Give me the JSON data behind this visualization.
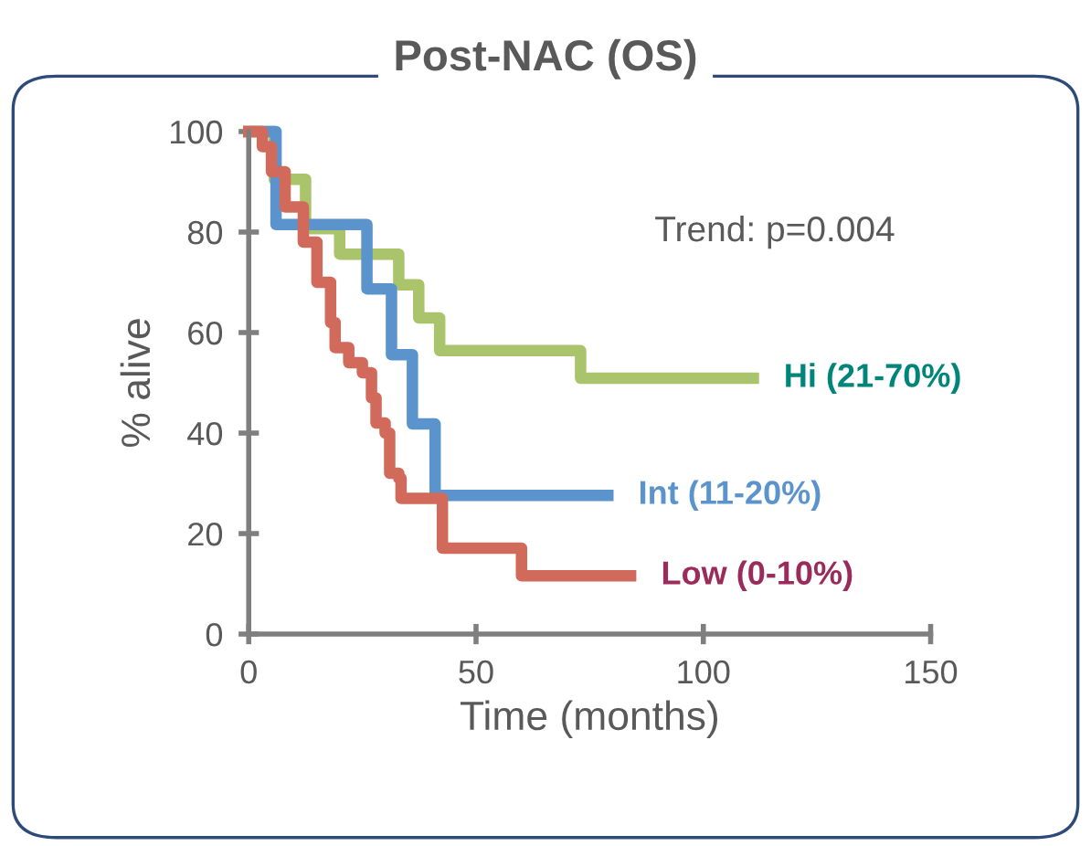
{
  "chart_data": {
    "type": "step",
    "title": "Post-NAC (OS)",
    "xlabel": "Time (months)",
    "ylabel": "% alive",
    "xlim": [
      0,
      150
    ],
    "xticks": [
      0,
      50,
      100,
      150
    ],
    "ylim": [
      0,
      100
    ],
    "yticks": [
      0,
      20,
      40,
      60,
      80,
      100
    ],
    "grid": false,
    "annotations": [
      "Trend: p=0.004"
    ],
    "series": [
      {
        "name": "Hi (21-70%)",
        "color": "#a9c46a",
        "x": [
          0,
          5.6,
          12.5,
          20,
          33,
          37.4,
          42,
          73,
          111
        ],
        "values": [
          100,
          90.5,
          80.7,
          75.6,
          69.5,
          62.9,
          56.4,
          50.9,
          50.9
        ]
      },
      {
        "name": "Int (11-20%)",
        "color": "#5b94cc",
        "x": [
          0,
          6,
          26,
          31.4,
          36,
          41,
          79
        ],
        "values": [
          100,
          81.5,
          68.7,
          55.6,
          41.8,
          27.6,
          27.6
        ]
      },
      {
        "name": "Low (0-10%)",
        "color": "#d26a5c",
        "x": [
          0,
          3,
          5,
          8,
          12,
          15,
          18,
          19,
          22,
          25,
          27,
          28,
          30,
          31,
          33,
          33.5,
          42.6,
          60,
          84
        ],
        "values": [
          100,
          97,
          92,
          85,
          78,
          70,
          62,
          57,
          54,
          52,
          47,
          42,
          40,
          32,
          31,
          27,
          17.1,
          11.6,
          11.6
        ]
      }
    ]
  }
}
